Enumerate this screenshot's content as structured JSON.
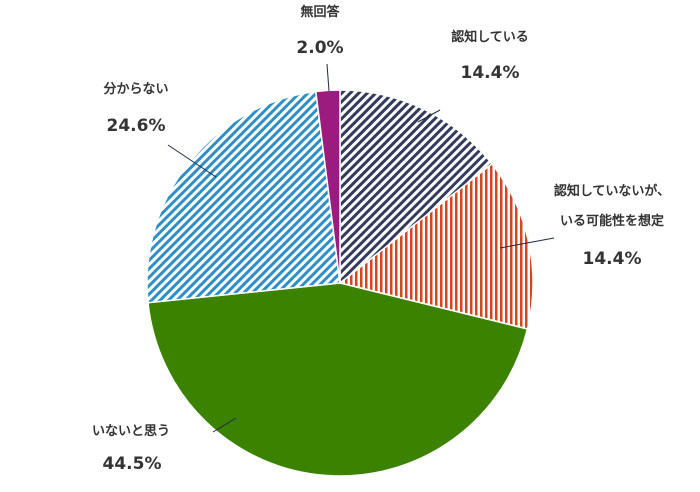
{
  "chart_data": {
    "type": "pie",
    "title": "",
    "start_angle_deg": 0,
    "direction": "clockwise",
    "slices": [
      {
        "label_lines": [
          "認知している"
        ],
        "value": 14.4,
        "value_label": "14.4%",
        "color": "#333a5c",
        "fill": "diagonal-hatch"
      },
      {
        "label_lines": [
          "認知していないが、",
          "いる可能性を想定"
        ],
        "value": 14.4,
        "value_label": "14.4%",
        "color": "#d8451c",
        "fill": "vertical-hatch"
      },
      {
        "label_lines": [
          "いないと思う"
        ],
        "value": 44.5,
        "value_label": "44.5%",
        "color": "#3a8200",
        "fill": "solid"
      },
      {
        "label_lines": [
          "分からない"
        ],
        "value": 24.6,
        "value_label": "24.6%",
        "color": "#2e8fc8",
        "fill": "diagonal-hatch"
      },
      {
        "label_lines": [
          "無回答"
        ],
        "value": 2.0,
        "value_label": "2.0%",
        "color": "#9b1b7e",
        "fill": "solid"
      }
    ]
  }
}
